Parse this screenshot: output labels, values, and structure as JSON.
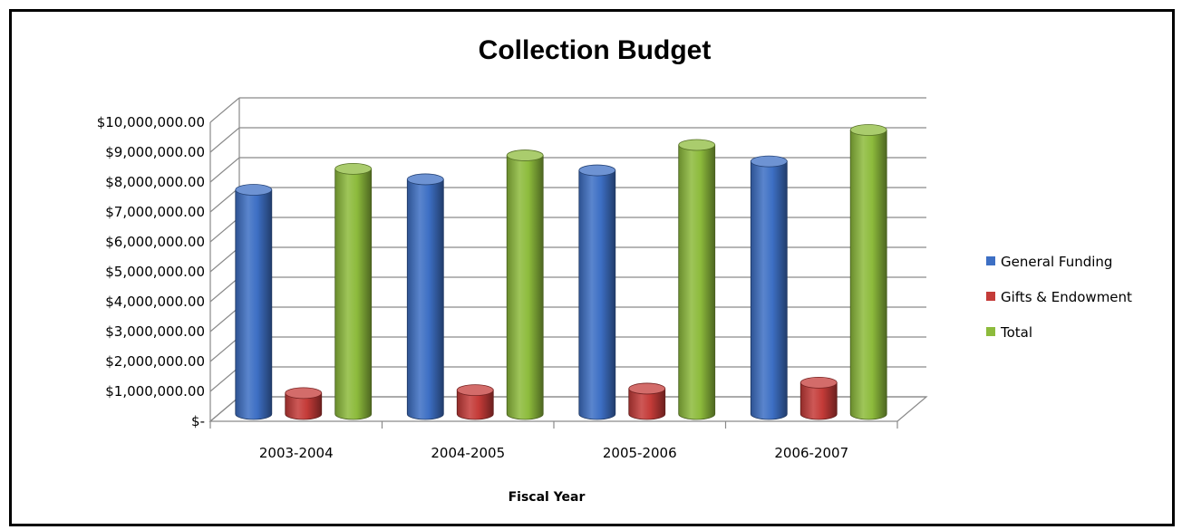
{
  "chart_data": {
    "type": "bar",
    "style": "3d-cylinder",
    "title": "Collection Budget",
    "xlabel": "Fiscal Year",
    "ylabel": "",
    "categories": [
      "2003-2004",
      "2004-2005",
      "2005-2006",
      "2006-2007"
    ],
    "series": [
      {
        "name": "General Funding",
        "color": "#3D6FC4",
        "values": [
          7500000,
          7850000,
          8150000,
          8450000
        ]
      },
      {
        "name": "Gifts & Endowment",
        "color": "#C43B38",
        "values": [
          700000,
          800000,
          850000,
          1050000
        ]
      },
      {
        "name": "Total",
        "color": "#8DBB3C",
        "values": [
          8200000,
          8650000,
          9000000,
          9500000
        ]
      }
    ],
    "ylim": [
      0,
      10000000
    ],
    "yticks": [
      "$-",
      "$1,000,000.00",
      "$2,000,000.00",
      "$3,000,000.00",
      "$4,000,000.00",
      "$5,000,000.00",
      "$6,000,000.00",
      "$7,000,000.00",
      "$8,000,000.00",
      "$9,000,000.00",
      "$10,000,000.00"
    ],
    "grid": true,
    "legend_position": "right"
  }
}
